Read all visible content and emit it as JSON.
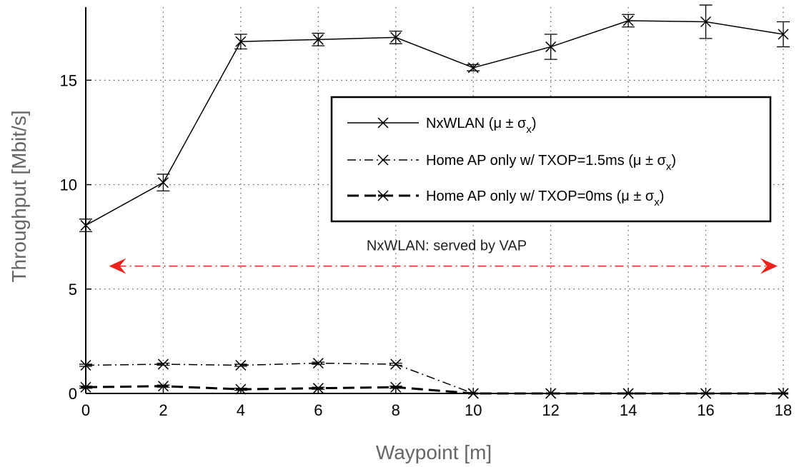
{
  "chart_data": {
    "type": "line",
    "xlabel": "Waypoint [m]",
    "ylabel": "Throughput [Mbit/s]",
    "xlim": [
      0,
      18
    ],
    "ylim": [
      0,
      18.5
    ],
    "xticks": [
      0,
      2,
      4,
      6,
      8,
      10,
      12,
      14,
      16,
      18
    ],
    "yticks": [
      0,
      5,
      10,
      15
    ],
    "grid": true,
    "legend_position": "upper-right",
    "x": [
      0,
      2,
      4,
      6,
      8,
      10,
      12,
      14,
      16,
      18
    ],
    "series": [
      {
        "name": "NxWLAN (μ ± σ",
        "name_sub": "x",
        "name_end": ")",
        "style": "solid",
        "values": [
          8.05,
          10.1,
          16.85,
          16.95,
          17.05,
          15.6,
          16.6,
          17.85,
          17.8,
          17.2
        ],
        "err": [
          0.3,
          0.4,
          0.35,
          0.3,
          0.3,
          0.15,
          0.6,
          0.3,
          0.8,
          0.6
        ]
      },
      {
        "name": "Home AP only w/ TXOP=1.5ms (μ ± σ",
        "name_sub": "x",
        "name_end": ")",
        "style": "dashdot",
        "values": [
          1.35,
          1.4,
          1.35,
          1.45,
          1.4,
          0.0,
          0.0,
          0.0,
          0.0,
          0.0
        ],
        "err": [
          0.05,
          0.05,
          0.05,
          0.05,
          0.05,
          0.0,
          0.0,
          0.0,
          0.0,
          0.0
        ]
      },
      {
        "name": "Home AP only w/ TXOP=0ms (μ ± σ",
        "name_sub": "x",
        "name_end": ")",
        "style": "dashed",
        "values": [
          0.3,
          0.35,
          0.2,
          0.25,
          0.3,
          0.0,
          0.0,
          0.0,
          0.0,
          0.0
        ],
        "err": [
          0.05,
          0.05,
          0.05,
          0.05,
          0.05,
          0.0,
          0.0,
          0.0,
          0.0,
          0.0
        ]
      }
    ],
    "annotations": [
      {
        "text": "NxWLAN: served by VAP",
        "arrow": {
          "x_from": 0.6,
          "x_to": 18,
          "y": 6.1,
          "color": "#e8241d"
        }
      }
    ]
  }
}
